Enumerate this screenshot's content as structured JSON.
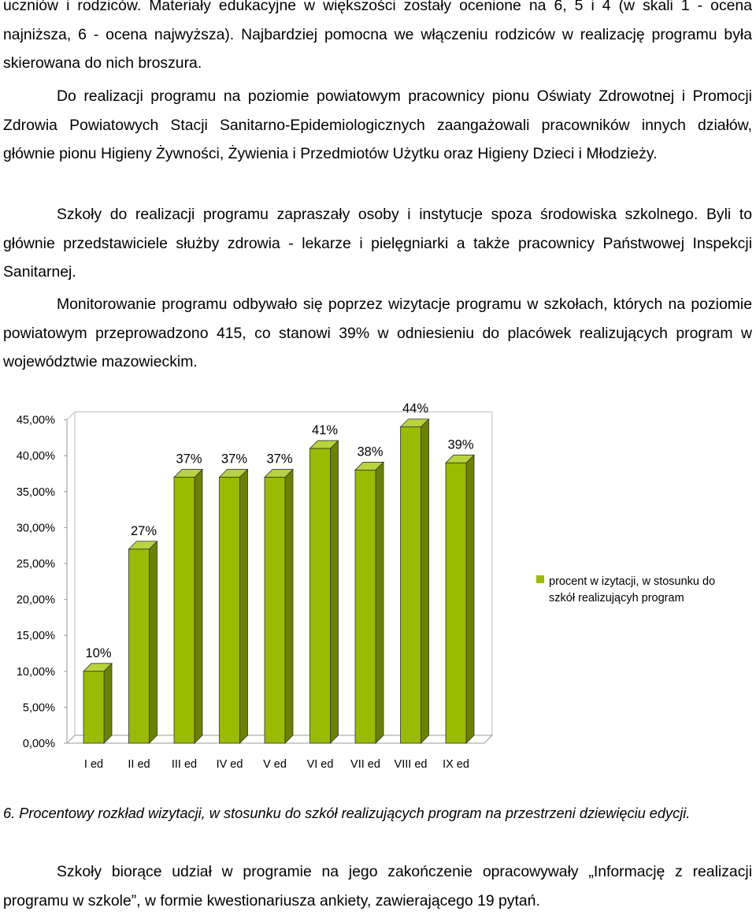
{
  "document": {
    "para1": "uczniów i rodziców. Materiały edukacyjne w większości zostały ocenione na 6, 5 i 4 (w skali 1 - ocena najniższa, 6 - ocena najwyższa). Najbardziej pomocna we włączeniu rodziców w realizację programu była skierowana do nich broszura.",
    "para2": "Do realizacji programu na poziomie powiatowym pracownicy pionu Oświaty Zdrowotnej i Promocji Zdrowia Powiatowych Stacji Sanitarno-Epidemiologicznych zaangażowali pracowników innych działów, głównie pionu Higieny Żywności, Żywienia i Przedmiotów Użytku oraz Higieny Dzieci i Młodzieży.",
    "para3": "Szkoły do realizacji programu zapraszały osoby i instytucje spoza środowiska szkolnego. Byli to głównie przedstawiciele służby zdrowia - lekarze i pielęgniarki a także pracownicy Państwowej Inspekcji Sanitarnej.",
    "para4": "Monitorowanie programu odbywało się poprzez wizytacje programu w szkołach, których na poziomie powiatowym przeprowadzono 415, co stanowi 39% w odniesieniu do placówek realizujących program w województwie mazowieckim.",
    "caption": "6. Procentowy rozkład wizytacji, w stosunku do szkół realizujących program na przestrzeni dziewięciu edycji.",
    "para5": "Szkoły biorące udział w programie na jego zakończenie opracowywały „Informację z realizacji programu w szkole”, w formie kwestionariusza ankiety, zawierającego 19 pytań."
  },
  "chart_data": {
    "type": "bar",
    "categories": [
      "I ed",
      "II ed",
      "III ed",
      "IV ed",
      "V ed",
      "VI ed",
      "VII ed",
      "VIII ed",
      "IX ed"
    ],
    "series": [
      {
        "name": "procent w izytacji, w stosunku do szkół realizującyh program",
        "values": [
          10,
          27,
          37,
          37,
          37,
          41,
          38,
          44,
          39
        ],
        "labels": [
          "10%",
          "27%",
          "37%",
          "37%",
          "37%",
          "41%",
          "38%",
          "44%",
          "39%"
        ],
        "color": "#99bb00"
      }
    ],
    "yticks": [
      "0,00%",
      "5,00%",
      "10,00%",
      "15,00%",
      "20,00%",
      "25,00%",
      "30,00%",
      "35,00%",
      "40,00%",
      "45,00%"
    ],
    "ylim": [
      0,
      45
    ],
    "legend_position": "right",
    "legend_lines": [
      "procent w izytacji, w stosunku do",
      "szkół realizującyh program"
    ],
    "grid": false,
    "bar_style": "3d"
  }
}
